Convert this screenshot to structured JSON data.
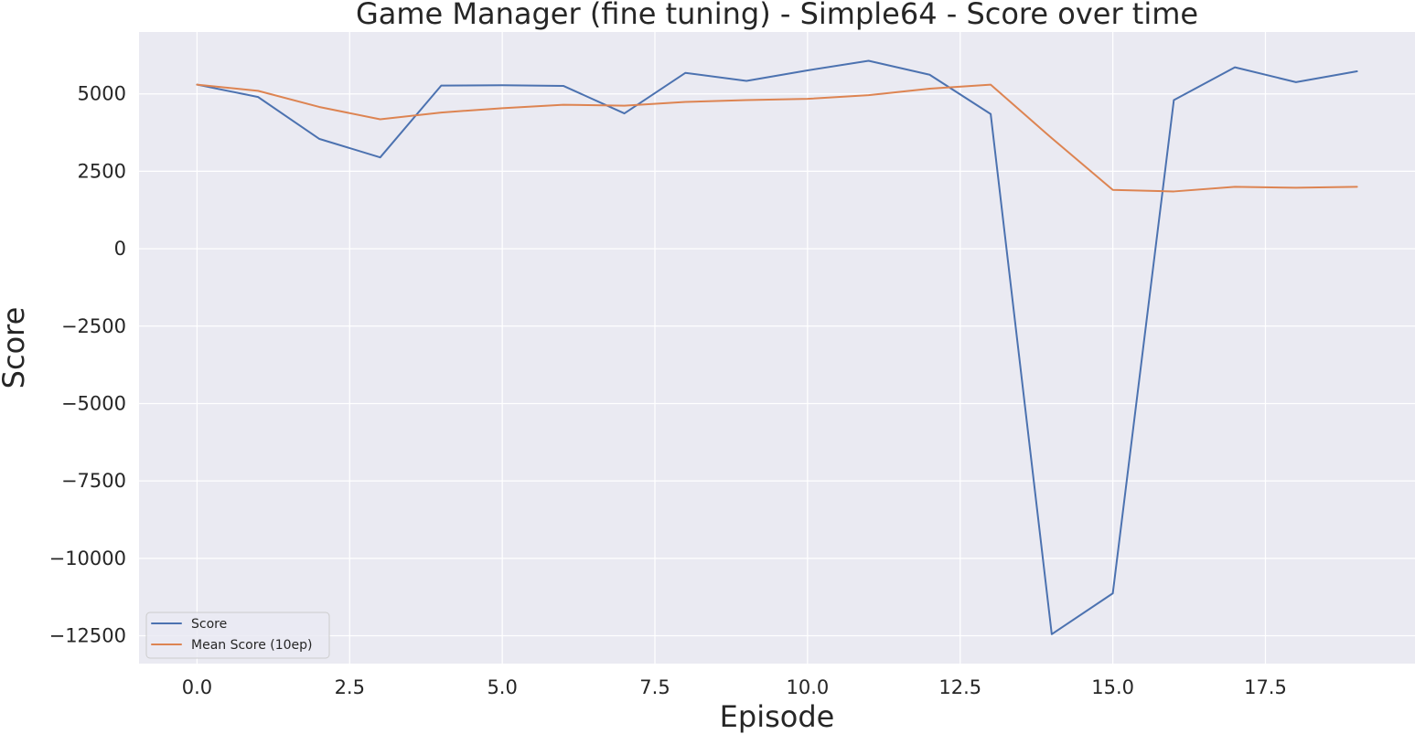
{
  "chart_data": {
    "type": "line",
    "title": "Game Manager (fine tuning) - Simple64 - Score over time",
    "xlabel": "Episode",
    "ylabel": "Score",
    "xlim": [
      -0.95,
      19.95
    ],
    "ylim": [
      -13400,
      7000
    ],
    "xticks": [
      0,
      2.5,
      5,
      7.5,
      10,
      12.5,
      15,
      17.5
    ],
    "xtick_labels": [
      "0.0",
      "2.5",
      "5.0",
      "7.5",
      "10.0",
      "12.5",
      "15.0",
      "17.5"
    ],
    "yticks": [
      5000,
      2500,
      0,
      -2500,
      -5000,
      -7500,
      -10000,
      -12500
    ],
    "ytick_labels": [
      "5000",
      "2500",
      "0",
      "−2500",
      "−5000",
      "−7500",
      "−10000",
      "−12500"
    ],
    "grid": true,
    "legend_position": "lower-left",
    "x": [
      0,
      1,
      2,
      3,
      4,
      5,
      6,
      7,
      8,
      9,
      10,
      11,
      12,
      13,
      14,
      15,
      16,
      17,
      18,
      19
    ],
    "series": [
      {
        "name": "Score",
        "color": "#4c72b0",
        "values": [
          5300,
          4900,
          3550,
          2950,
          5270,
          5280,
          5260,
          4370,
          5680,
          5420,
          5760,
          6070,
          5620,
          4350,
          -12450,
          -11130,
          4800,
          5860,
          5380,
          5730
        ]
      },
      {
        "name": "Mean Score (10ep)",
        "color": "#dd8452",
        "values": [
          5300,
          5100,
          4580,
          4180,
          4400,
          4540,
          4650,
          4620,
          4740,
          4800,
          4840,
          4960,
          5170,
          5300,
          3570,
          1900,
          1850,
          2000,
          1970,
          2000
        ]
      }
    ]
  }
}
